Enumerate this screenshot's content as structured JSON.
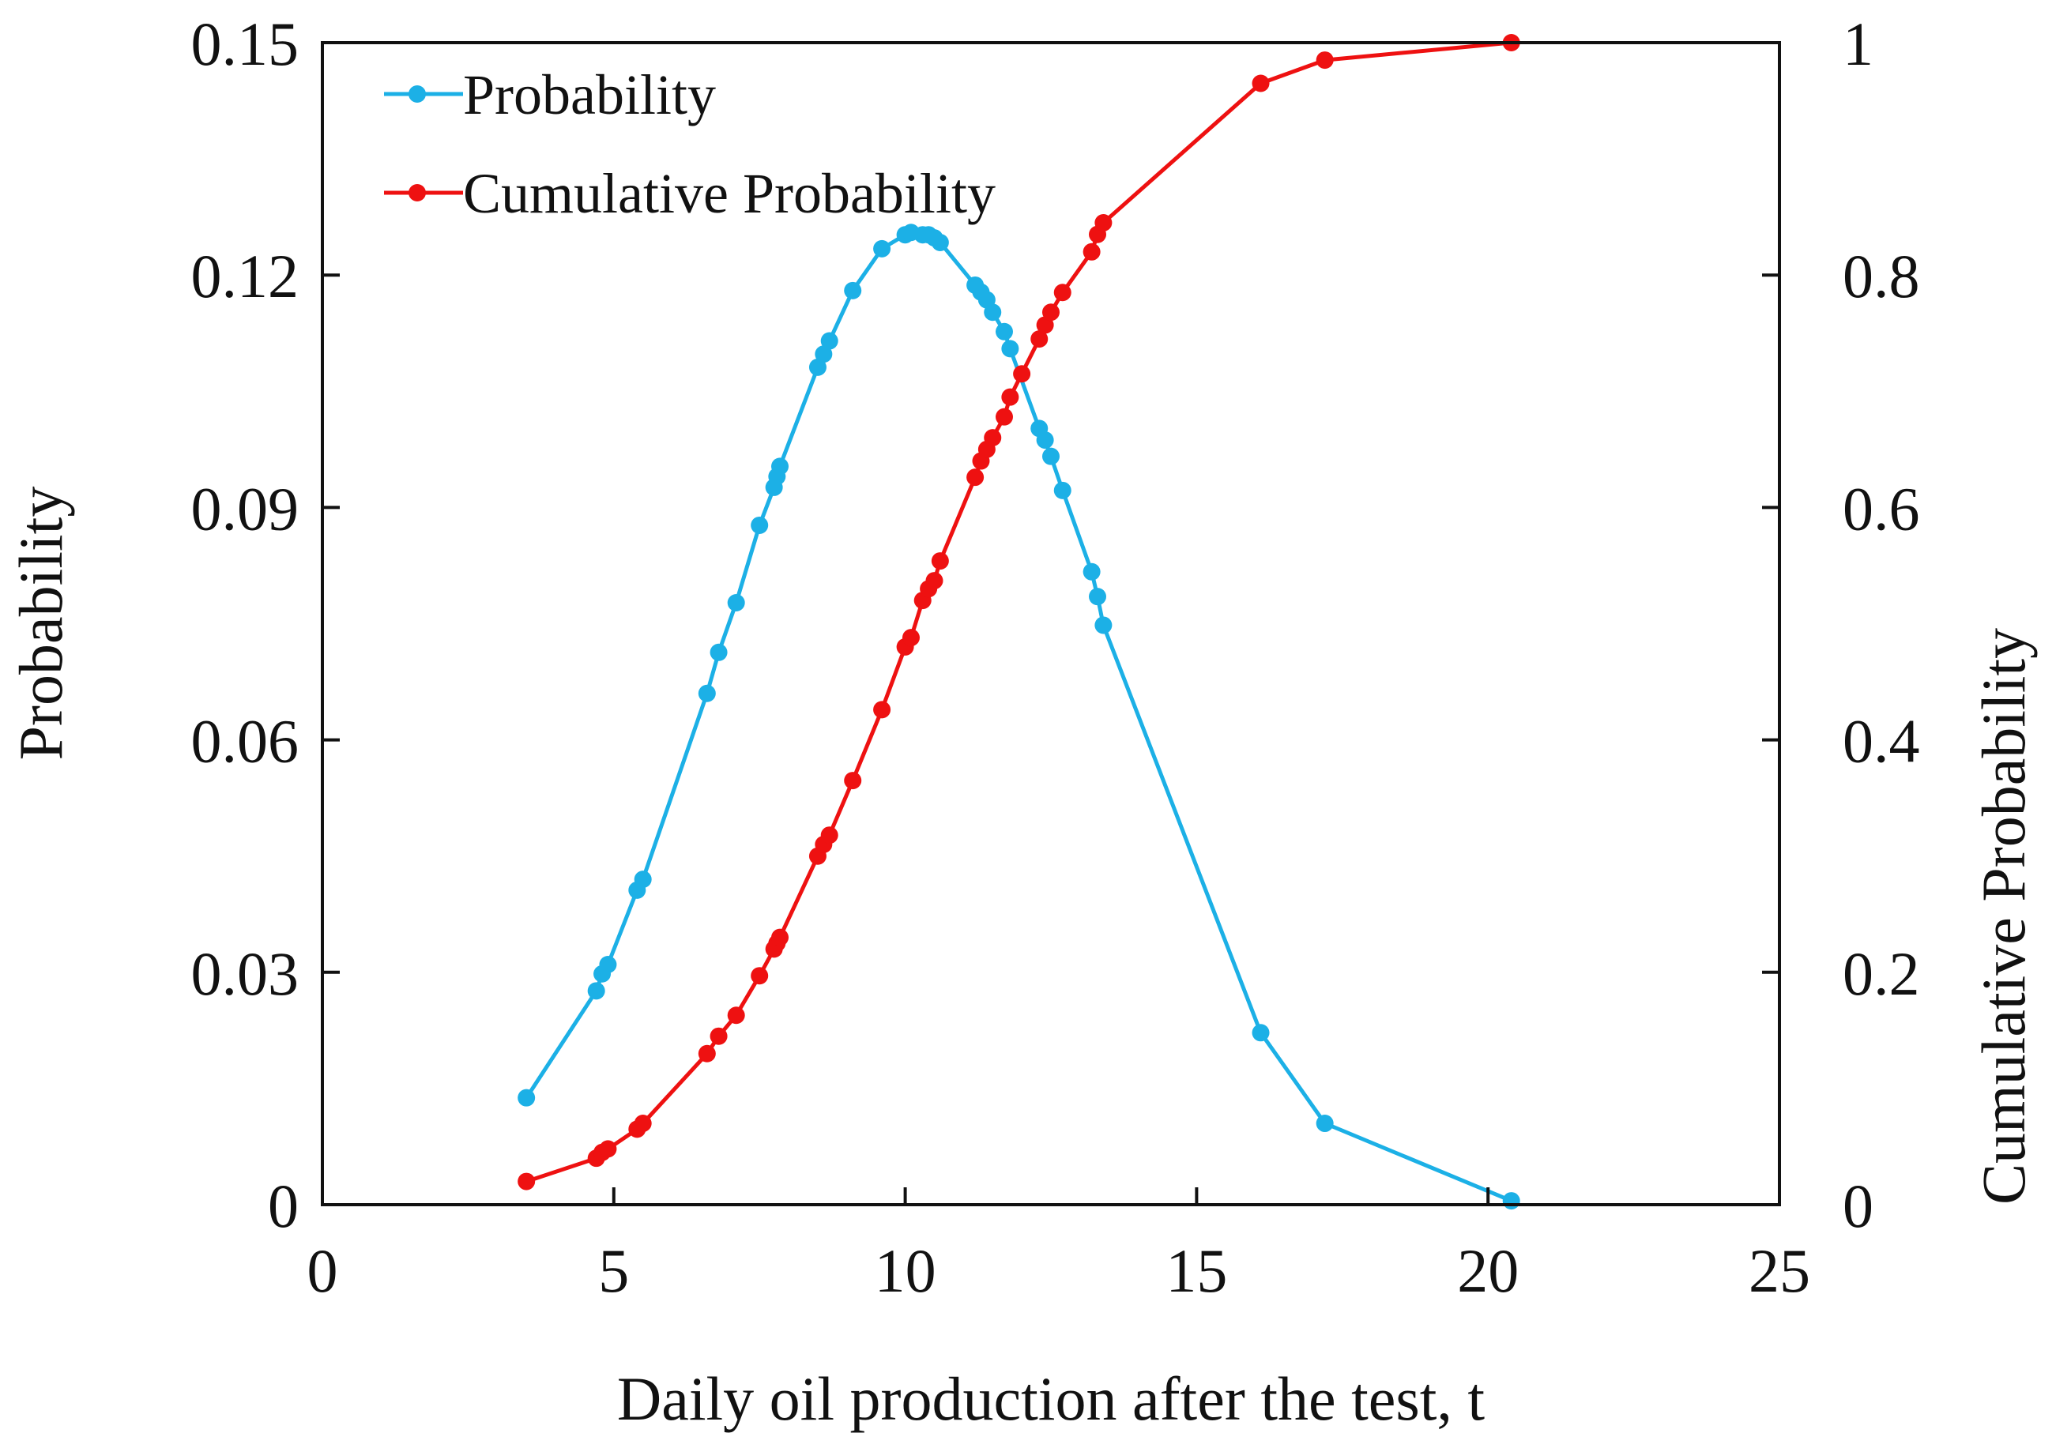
{
  "chart_data": {
    "type": "line",
    "title": "",
    "xlabel": "Daily oil production after the test, t",
    "ylabel": "Probability",
    "y2label": "Cumulative Probability",
    "xlim": [
      0,
      25
    ],
    "ylim": [
      0,
      0.15
    ],
    "y2lim": [
      0,
      1
    ],
    "xticks": [
      0,
      5,
      10,
      15,
      20,
      25
    ],
    "xtick_labels": [
      "0",
      "5",
      "10",
      "15",
      "20",
      "25"
    ],
    "yticks": [
      0,
      0.03,
      0.06,
      0.09,
      0.12,
      0.15
    ],
    "ytick_labels": [
      "0",
      "0.03",
      "0.06",
      "0.09",
      "0.12",
      "0.15"
    ],
    "y2ticks": [
      0,
      0.2,
      0.4,
      0.6,
      0.8,
      1
    ],
    "y2tick_labels": [
      "0",
      "0.2",
      "0.4",
      "0.6",
      "0.8",
      "1"
    ],
    "grid": false,
    "legend_position": "top-left",
    "series": [
      {
        "name": "Probability",
        "axis": "left",
        "color": "#1cb0e6",
        "x": [
          3.5,
          4.7,
          4.8,
          4.9,
          5.4,
          5.5,
          6.6,
          6.8,
          7.1,
          7.5,
          7.75,
          7.8,
          7.85,
          8.5,
          8.6,
          8.7,
          9.1,
          9.6,
          10.0,
          10.1,
          10.3,
          10.4,
          10.5,
          10.6,
          11.2,
          11.3,
          11.4,
          11.5,
          11.7,
          11.8,
          12.3,
          12.4,
          12.5,
          12.7,
          13.2,
          13.3,
          13.4,
          16.1,
          17.2,
          20.4
        ],
        "y": [
          0.0138,
          0.0276,
          0.0298,
          0.031,
          0.0406,
          0.042,
          0.066,
          0.0713,
          0.0777,
          0.0877,
          0.0926,
          0.094,
          0.0953,
          0.1081,
          0.1098,
          0.1115,
          0.118,
          0.1234,
          0.1252,
          0.1255,
          0.1252,
          0.1252,
          0.1248,
          0.1242,
          0.1187,
          0.1178,
          0.1168,
          0.1152,
          0.1127,
          0.1105,
          0.1002,
          0.0987,
          0.0966,
          0.0922,
          0.0817,
          0.0785,
          0.0748,
          0.0222,
          0.0105,
          0.0005
        ]
      },
      {
        "name": "Cumulative Probability",
        "axis": "right",
        "color": "#ee1111",
        "x": [
          3.5,
          4.7,
          4.8,
          4.9,
          5.4,
          5.5,
          6.6,
          6.8,
          7.1,
          7.5,
          7.75,
          7.8,
          7.85,
          8.5,
          8.6,
          8.7,
          9.1,
          9.6,
          10.0,
          10.1,
          10.3,
          10.4,
          10.5,
          10.6,
          11.2,
          11.3,
          11.4,
          11.5,
          11.7,
          11.8,
          12.0,
          12.3,
          12.4,
          12.5,
          12.7,
          13.2,
          13.3,
          13.4,
          16.1,
          17.2,
          20.4
        ],
        "y": [
          0.02,
          0.04,
          0.045,
          0.048,
          0.065,
          0.07,
          0.13,
          0.145,
          0.163,
          0.197,
          0.22,
          0.225,
          0.23,
          0.3,
          0.31,
          0.318,
          0.365,
          0.426,
          0.48,
          0.488,
          0.52,
          0.53,
          0.537,
          0.554,
          0.626,
          0.64,
          0.65,
          0.66,
          0.678,
          0.695,
          0.715,
          0.745,
          0.757,
          0.768,
          0.785,
          0.82,
          0.835,
          0.845,
          0.965,
          0.985,
          1.0
        ]
      }
    ]
  }
}
